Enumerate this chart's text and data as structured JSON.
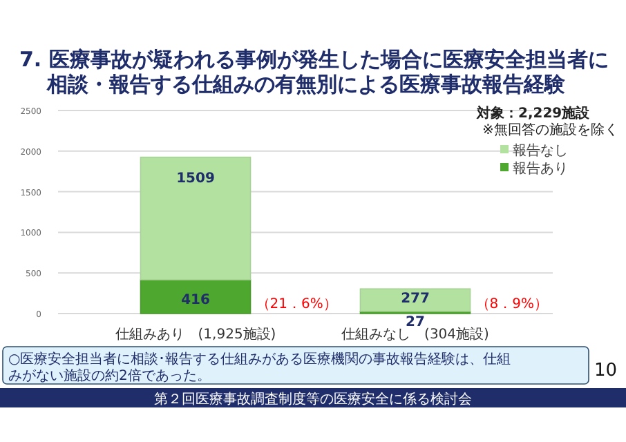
{
  "chart_data": {
    "type": "bar",
    "title": "7. 医療事故が疑われる事例が発生した場合に医療安全担当者に",
    "subtitle": "相談・報告する仕組みの有無別による医療事故報告経験",
    "categories": [
      "仕組みあり　(1,925施設)",
      "仕組みなし　(304施設)"
    ],
    "stacked": true,
    "series": [
      {
        "name": "報告あり",
        "color": "#4ea72e",
        "values": [
          416,
          27
        ]
      },
      {
        "name": "報告なし",
        "color": "#b3e2a0",
        "values": [
          1509,
          277
        ]
      }
    ],
    "ylim": [
      0,
      2500
    ],
    "yticks": [
      0,
      500,
      1000,
      1500,
      2000,
      2500
    ],
    "grid": "y",
    "legend": "top right",
    "data_labels": true,
    "annotations": [
      "対象：2,229施設",
      "※無回答の施設を除く",
      "○医療安全担当者に相談･報告する仕組みがある医療機関の事故報告経験は、仕組みがない施設の約2倍であった。",
      "10",
      "第２回医療事故調査制度等の医療安全に係る検討会",
      "（21．6%）",
      "（8．9%）"
    ]
  }
}
